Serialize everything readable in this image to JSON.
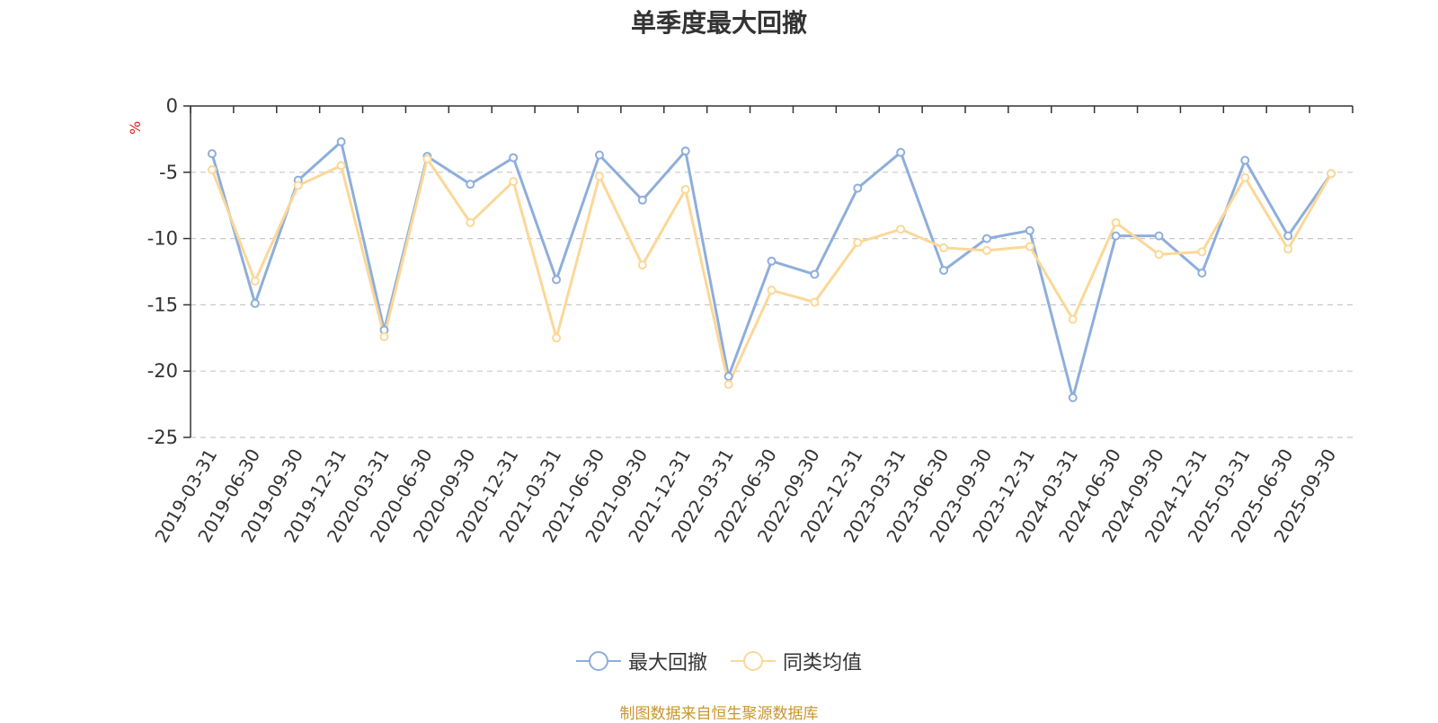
{
  "chart_data": {
    "type": "line",
    "title": "单季度最大回撤",
    "ylabel": "%",
    "source_note": "制图数据来自恒生聚源数据库",
    "x": [
      "2019-03-31",
      "2019-06-30",
      "2019-09-30",
      "2019-12-31",
      "2020-03-31",
      "2020-06-30",
      "2020-09-30",
      "2020-12-31",
      "2021-03-31",
      "2021-06-30",
      "2021-09-30",
      "2021-12-31",
      "2022-03-31",
      "2022-06-30",
      "2022-09-30",
      "2022-12-31",
      "2023-03-31",
      "2023-06-30",
      "2023-09-30",
      "2023-12-31",
      "2024-03-31",
      "2024-06-30",
      "2024-09-30",
      "2024-12-31",
      "2025-03-31",
      "2025-06-30",
      "2025-09-30"
    ],
    "ylim": [
      -25,
      0
    ],
    "yticks": [
      0,
      -5,
      -10,
      -15,
      -20,
      -25
    ],
    "ytick_labels": [
      "0",
      "-5",
      "-10",
      "-15",
      "-20",
      "-25"
    ],
    "grid": "horizontal dashed",
    "legend_position": "bottom-center",
    "series": [
      {
        "name": "最大回撤",
        "color": "#8eaedb",
        "values": [
          -3.6,
          -14.9,
          -5.6,
          -2.7,
          -16.9,
          -3.8,
          -5.9,
          -3.9,
          -13.1,
          -3.7,
          -7.1,
          -3.4,
          -20.4,
          -11.7,
          -12.7,
          -6.2,
          -3.5,
          -12.4,
          -10.0,
          -9.4,
          -22.0,
          -9.8,
          -9.8,
          -12.6,
          -4.1,
          -9.8,
          -5.1
        ]
      },
      {
        "name": "同类均值",
        "color": "#fbd898",
        "values": [
          -4.8,
          -13.2,
          -6.0,
          -4.5,
          -17.4,
          -4.0,
          -8.8,
          -5.7,
          -17.5,
          -5.3,
          -12.0,
          -6.3,
          -21.0,
          -13.9,
          -14.8,
          -10.3,
          -9.3,
          -10.7,
          -10.9,
          -10.6,
          -16.1,
          -8.8,
          -11.2,
          -11.0,
          -5.4,
          -10.8,
          -5.1
        ]
      }
    ]
  }
}
